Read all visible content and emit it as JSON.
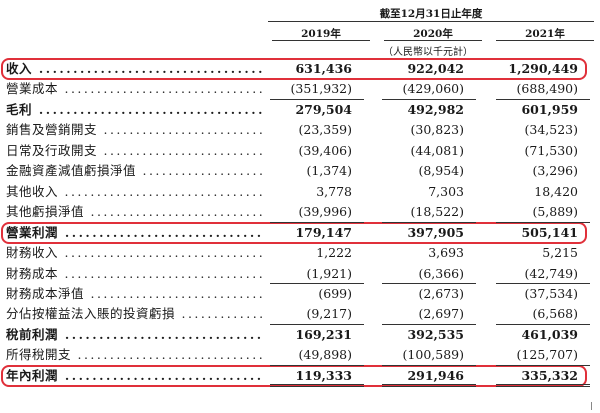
{
  "header": {
    "period": "截至12月31日止年度",
    "years": [
      "2019年",
      "2020年",
      "2021年"
    ],
    "unit": "（人民幣以千元計）"
  },
  "rows": [
    {
      "label": "收入",
      "v": [
        "631,436",
        "922,042",
        "1,290,449"
      ],
      "bold": true,
      "highlighted": true
    },
    {
      "label": "營業成本",
      "v": [
        "(351,932)",
        "(429,060)",
        "(688,490)"
      ],
      "bold": false,
      "highlighted": false
    },
    {
      "label": "毛利",
      "v": [
        "279,504",
        "492,982",
        "601,959"
      ],
      "bold": true,
      "highlighted": false
    },
    {
      "label": "銷售及營銷開支",
      "v": [
        "(23,359)",
        "(30,823)",
        "(34,523)"
      ],
      "bold": false,
      "highlighted": false
    },
    {
      "label": "日常及行政開支",
      "v": [
        "(39,406)",
        "(44,081)",
        "(71,530)"
      ],
      "bold": false,
      "highlighted": false
    },
    {
      "label": "金融資產減值虧損淨值",
      "v": [
        "(1,374)",
        "(8,954)",
        "(3,296)"
      ],
      "bold": false,
      "highlighted": false
    },
    {
      "label": "其他收入",
      "v": [
        "3,778",
        "7,303",
        "18,420"
      ],
      "bold": false,
      "highlighted": false
    },
    {
      "label": "其他虧損淨值",
      "v": [
        "(39,996)",
        "(18,522)",
        "(5,889)"
      ],
      "bold": false,
      "highlighted": false
    },
    {
      "label": "營業利潤",
      "v": [
        "179,147",
        "397,905",
        "505,141"
      ],
      "bold": true,
      "highlighted": true
    },
    {
      "label": "財務收入",
      "v": [
        "1,222",
        "3,693",
        "5,215"
      ],
      "bold": false,
      "highlighted": false
    },
    {
      "label": "財務成本",
      "v": [
        "(1,921)",
        "(6,366)",
        "(42,749)"
      ],
      "bold": false,
      "highlighted": false
    },
    {
      "label": "財務成本淨值",
      "v": [
        "(699)",
        "(2,673)",
        "(37,534)"
      ],
      "bold": false,
      "highlighted": false
    },
    {
      "label": "分佔按權益法入賬的投資虧損",
      "v": [
        "(9,217)",
        "(2,697)",
        "(6,568)"
      ],
      "bold": false,
      "highlighted": false
    },
    {
      "label": "稅前利潤",
      "v": [
        "169,231",
        "392,535",
        "461,039"
      ],
      "bold": true,
      "highlighted": false
    },
    {
      "label": "所得稅開支",
      "v": [
        "(49,898)",
        "(100,589)",
        "(125,707)"
      ],
      "bold": false,
      "highlighted": false
    },
    {
      "label": "年內利潤",
      "v": [
        "119,333",
        "291,946",
        "335,332"
      ],
      "bold": true,
      "highlighted": true
    }
  ],
  "highlight_color": "#e0303a"
}
